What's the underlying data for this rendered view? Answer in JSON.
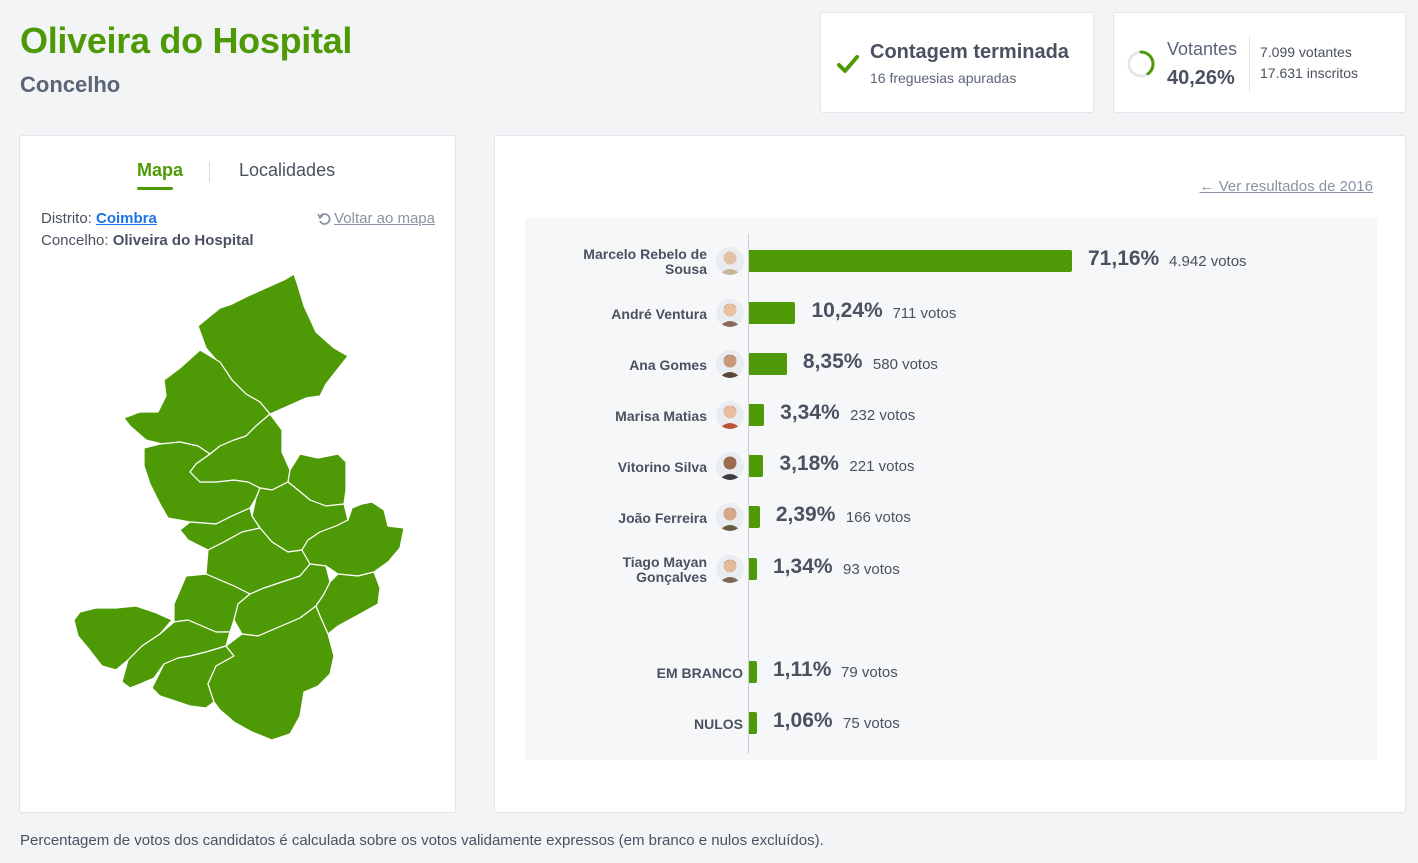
{
  "header": {
    "title": "Oliveira do Hospital",
    "subtitle": "Concelho"
  },
  "status": {
    "title": "Contagem terminada",
    "subtitle": "16 freguesias apuradas",
    "icon": "check-icon"
  },
  "voters": {
    "label": "Votantes",
    "percent": "40,26%",
    "percent_value": 40.26,
    "voters": "7.099 votantes",
    "registered": "17.631 inscritos"
  },
  "map_panel": {
    "tab_map": "Mapa",
    "tab_localities": "Localidades",
    "district_label": "Distrito:",
    "district_value": "Coimbra",
    "council_label": "Concelho:",
    "council_value": "Oliveira do Hospital",
    "back_link": "Voltar ao mapa"
  },
  "results": {
    "prev_link": "Ver resultados de 2016",
    "candidates": [
      {
        "name": "Marcelo Rebelo de Sousa",
        "line1": "Marcelo Rebelo de",
        "line2": "Sousa",
        "pct": "71,16%",
        "value": 71.16,
        "votes": "4.942 votos"
      },
      {
        "name": "André Ventura",
        "line1": "André Ventura",
        "line2": "",
        "pct": "10,24%",
        "value": 10.24,
        "votes": "711 votos"
      },
      {
        "name": "Ana Gomes",
        "line1": "Ana Gomes",
        "line2": "",
        "pct": "8,35%",
        "value": 8.35,
        "votes": "580 votos"
      },
      {
        "name": "Marisa Matias",
        "line1": "Marisa Matias",
        "line2": "",
        "pct": "3,34%",
        "value": 3.34,
        "votes": "232 votos"
      },
      {
        "name": "Vitorino Silva",
        "line1": "Vitorino Silva",
        "line2": "",
        "pct": "3,18%",
        "value": 3.18,
        "votes": "221 votos"
      },
      {
        "name": "João Ferreira",
        "line1": "João Ferreira",
        "line2": "",
        "pct": "2,39%",
        "value": 2.39,
        "votes": "166 votos"
      },
      {
        "name": "Tiago Mayan Gonçalves",
        "line1": "Tiago Mayan",
        "line2": "Gonçalves",
        "pct": "1,34%",
        "value": 1.34,
        "votes": "93 votos"
      }
    ],
    "others": [
      {
        "name": "EM BRANCO",
        "pct": "1,11%",
        "value": 1.11,
        "votes": "79 votos"
      },
      {
        "name": "NULOS",
        "pct": "1,06%",
        "value": 1.06,
        "votes": "75 votos"
      }
    ]
  },
  "footnote": "Percentagem de votos dos candidatos é calculada sobre os votos validamente expressos (em branco e nulos excluídos).",
  "colors": {
    "accent": "#4e9a06",
    "text": "#4a5160",
    "link": "#1a73e8"
  }
}
